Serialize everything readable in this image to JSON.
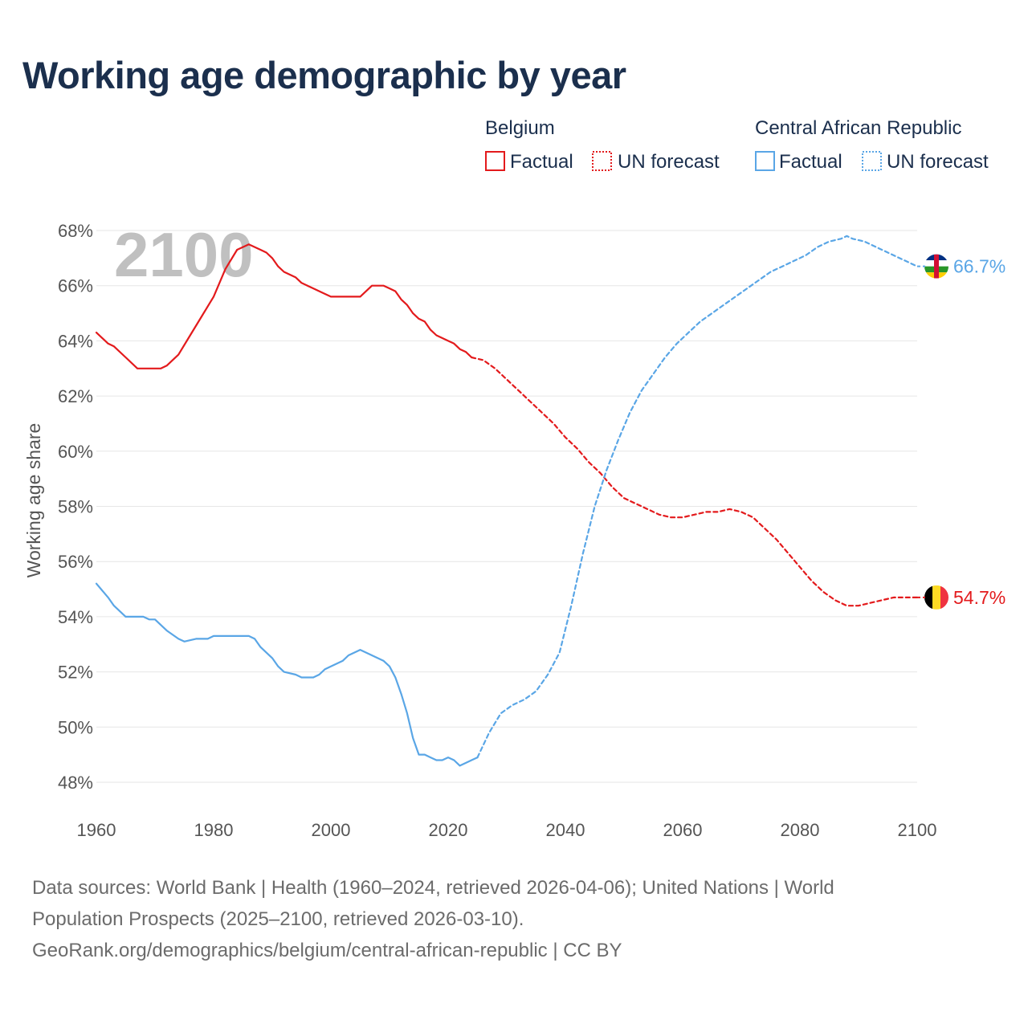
{
  "title": "Working age demographic by year",
  "colors": {
    "belgium": "#e31a1c",
    "car": "#5aa6e6",
    "grid": "#e6e6e6",
    "year_label": "#c0c0c0"
  },
  "legend": {
    "groups": [
      {
        "name": "Belgium",
        "factual_label": "Factual",
        "forecast_label": "UN forecast",
        "color": "#e31a1c"
      },
      {
        "name": "Central African Republic",
        "factual_label": "Factual",
        "forecast_label": "UN forecast",
        "color": "#5aa6e6"
      }
    ]
  },
  "year_display": "2100",
  "end_labels": {
    "belgium": "54.7%",
    "car": "66.7%"
  },
  "flags": {
    "belgium": "belgium-flag",
    "car": "central-african-republic-flag"
  },
  "footer": {
    "line1": "Data sources: World Bank | Health (1960–2024, retrieved 2026-04-06); United Nations | World",
    "line2": "Population Prospects (2025–2100, retrieved 2026-03-10).",
    "line3": "GeoRank.org/demographics/belgium/central-african-republic | CC BY"
  },
  "chart_data": {
    "type": "line",
    "title": "Working age demographic by year",
    "xlabel": "",
    "ylabel": "Working age share",
    "xlim": [
      1960,
      2100
    ],
    "ylim": [
      47,
      68.5
    ],
    "x_ticks": [
      1960,
      1980,
      2000,
      2020,
      2040,
      2060,
      2080,
      2100
    ],
    "x_tick_labels": [
      "1960",
      "1980",
      "2000",
      "2020",
      "2040",
      "2060",
      "2080",
      "2100"
    ],
    "y_ticks": [
      48,
      50,
      52,
      54,
      56,
      58,
      60,
      62,
      64,
      66,
      68
    ],
    "y_tick_labels": [
      "48%",
      "50%",
      "52%",
      "54%",
      "56%",
      "58%",
      "60%",
      "62%",
      "64%",
      "66%",
      "68%"
    ],
    "grid": true,
    "series": [
      {
        "name": "Belgium",
        "kind": "factual",
        "x": [
          1960,
          1962,
          1963,
          1965,
          1967,
          1969,
          1971,
          1972,
          1974,
          1976,
          1978,
          1980,
          1982,
          1984,
          1986,
          1988,
          1989,
          1990,
          1991,
          1992,
          1994,
          1995,
          1997,
          1999,
          2000,
          2005,
          2007,
          2009,
          2010,
          2011,
          2012,
          2013,
          2014,
          2015,
          2016,
          2017,
          2018,
          2020,
          2021,
          2022,
          2023,
          2024
        ],
        "y": [
          64.3,
          63.9,
          63.8,
          63.4,
          63.0,
          63.0,
          63.0,
          63.1,
          63.5,
          64.2,
          64.9,
          65.6,
          66.6,
          67.3,
          67.5,
          67.3,
          67.2,
          67.0,
          66.7,
          66.5,
          66.3,
          66.1,
          65.9,
          65.7,
          65.6,
          65.6,
          66.0,
          66.0,
          65.9,
          65.8,
          65.5,
          65.3,
          65.0,
          64.8,
          64.7,
          64.4,
          64.2,
          64.0,
          63.9,
          63.7,
          63.6,
          63.4
        ]
      },
      {
        "name": "Belgium",
        "kind": "UN forecast",
        "x": [
          2024,
          2026,
          2028,
          2030,
          2032,
          2034,
          2036,
          2038,
          2040,
          2042,
          2044,
          2046,
          2048,
          2050,
          2052,
          2054,
          2056,
          2058,
          2060,
          2062,
          2064,
          2066,
          2068,
          2070,
          2072,
          2074,
          2076,
          2078,
          2080,
          2082,
          2084,
          2086,
          2088,
          2090,
          2092,
          2094,
          2096,
          2098,
          2100
        ],
        "y": [
          63.4,
          63.3,
          63.0,
          62.6,
          62.2,
          61.8,
          61.4,
          61.0,
          60.5,
          60.1,
          59.6,
          59.2,
          58.7,
          58.3,
          58.1,
          57.9,
          57.7,
          57.6,
          57.6,
          57.7,
          57.8,
          57.8,
          57.9,
          57.8,
          57.6,
          57.2,
          56.8,
          56.3,
          55.8,
          55.3,
          54.9,
          54.6,
          54.4,
          54.4,
          54.5,
          54.6,
          54.7,
          54.7,
          54.7
        ]
      },
      {
        "name": "Central African Republic",
        "kind": "factual",
        "x": [
          1960,
          1962,
          1963,
          1965,
          1967,
          1968,
          1969,
          1970,
          1972,
          1974,
          1975,
          1977,
          1979,
          1980,
          1985,
          1986,
          1987,
          1988,
          1990,
          1991,
          1992,
          1994,
          1995,
          1997,
          1998,
          1999,
          2000,
          2002,
          2003,
          2005,
          2007,
          2009,
          2010,
          2011,
          2012,
          2013,
          2014,
          2015,
          2016,
          2017,
          2018,
          2019,
          2020,
          2021,
          2022,
          2024,
          2025
        ],
        "y": [
          55.2,
          54.7,
          54.4,
          54.0,
          54.0,
          54.0,
          53.9,
          53.9,
          53.5,
          53.2,
          53.1,
          53.2,
          53.2,
          53.3,
          53.3,
          53.3,
          53.2,
          52.9,
          52.5,
          52.2,
          52.0,
          51.9,
          51.8,
          51.8,
          51.9,
          52.1,
          52.2,
          52.4,
          52.6,
          52.8,
          52.6,
          52.4,
          52.2,
          51.8,
          51.2,
          50.5,
          49.6,
          49.0,
          49.0,
          48.9,
          48.8,
          48.8,
          48.9,
          48.8,
          48.6,
          48.8,
          48.9
        ]
      },
      {
        "name": "Central African Republic",
        "kind": "UN forecast",
        "x": [
          2025,
          2027,
          2029,
          2031,
          2033,
          2035,
          2037,
          2039,
          2041,
          2043,
          2045,
          2047,
          2049,
          2051,
          2053,
          2055,
          2057,
          2059,
          2061,
          2063,
          2065,
          2067,
          2069,
          2071,
          2073,
          2075,
          2077,
          2079,
          2081,
          2083,
          2085,
          2087,
          2088,
          2089,
          2091,
          2093,
          2095,
          2097,
          2099,
          2100
        ],
        "y": [
          48.9,
          49.8,
          50.5,
          50.8,
          51.0,
          51.3,
          51.9,
          52.7,
          54.4,
          56.3,
          58.0,
          59.3,
          60.4,
          61.4,
          62.2,
          62.8,
          63.4,
          63.9,
          64.3,
          64.7,
          65.0,
          65.3,
          65.6,
          65.9,
          66.2,
          66.5,
          66.7,
          66.9,
          67.1,
          67.4,
          67.6,
          67.7,
          67.8,
          67.7,
          67.6,
          67.4,
          67.2,
          67.0,
          66.8,
          66.7
        ]
      }
    ]
  }
}
